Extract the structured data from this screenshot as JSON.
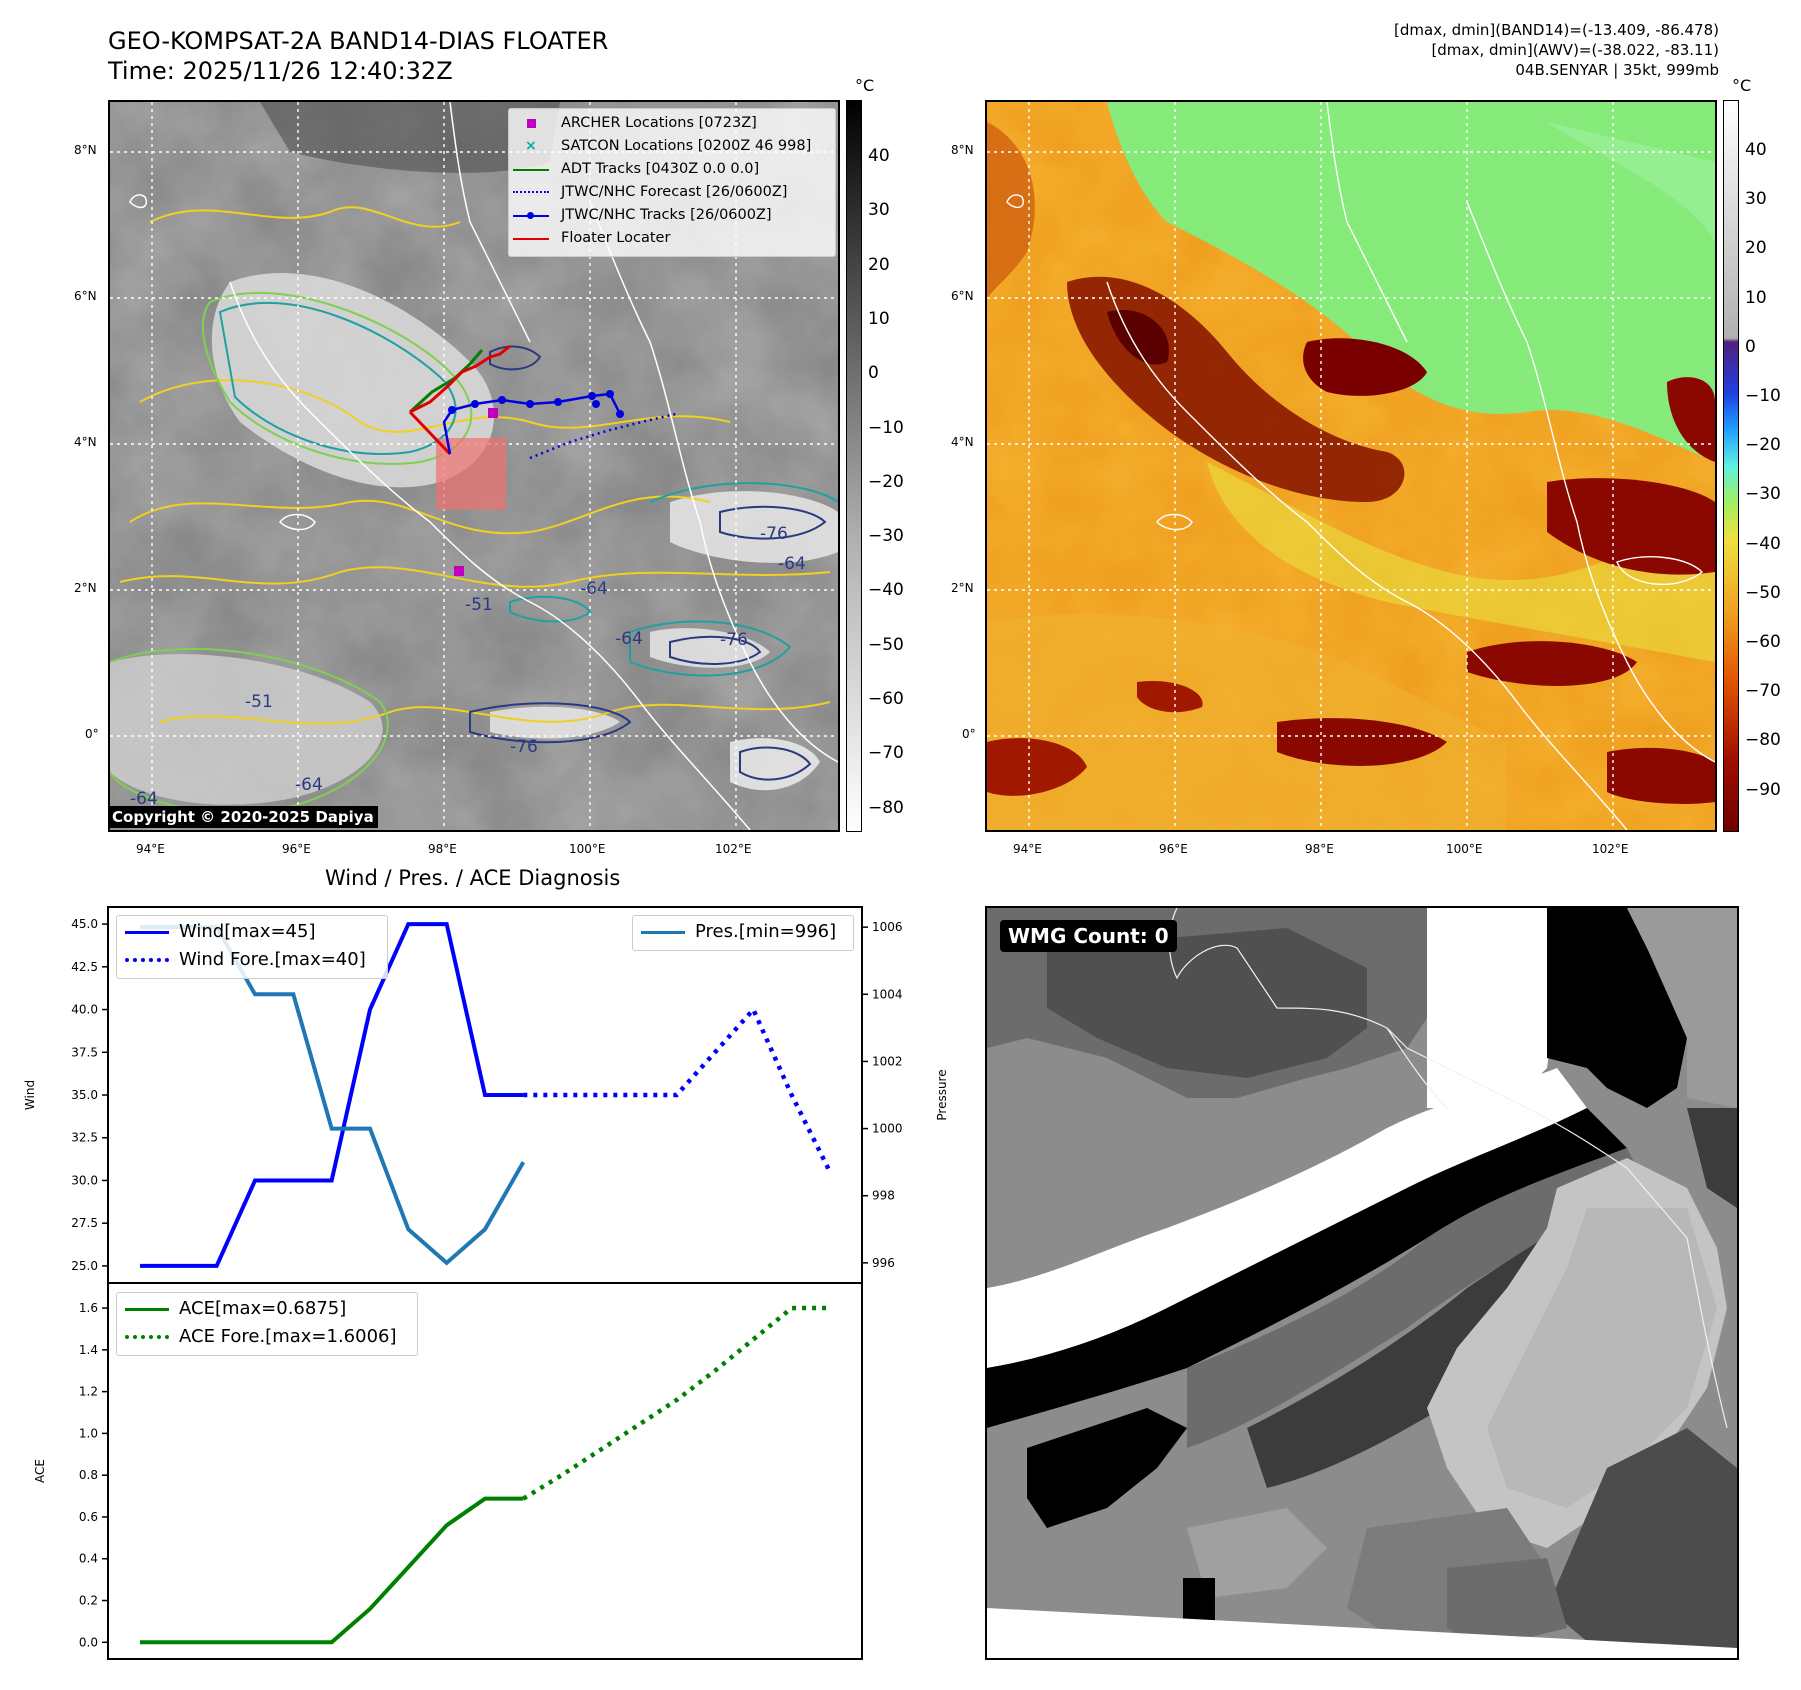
{
  "header": {
    "title_line1": "GEO-KOMPSAT-2A BAND14-DIAS FLOATER",
    "title_line2": "Time: 2025/11/26 12:40:32Z",
    "stats_line1": "[dmax, dmin](BAND14)=(-13.409, -86.478)",
    "stats_line2": "[dmax, dmin](AWV)=(-38.022, -83.11)",
    "stats_line3": "04B.SENYAR | 35kt, 999mb"
  },
  "ir_map": {
    "unit": "°C",
    "lat_labels": [
      "8°N",
      "6°N",
      "4°N",
      "2°N",
      "0°"
    ],
    "lon_labels": [
      "94°E",
      "96°E",
      "98°E",
      "100°E",
      "102°E"
    ],
    "colorbar_ticks": [
      "40",
      "30",
      "20",
      "10",
      "0",
      "−10",
      "−20",
      "−30",
      "−40",
      "−50",
      "−60",
      "−70",
      "−80"
    ],
    "copyright": "Copyright © 2020-2025 Dapiya",
    "contour_labels": [
      "-76",
      "-64",
      "-51",
      "-64",
      "-76",
      "-64",
      "-51",
      "-64",
      "-76",
      "-64"
    ],
    "legend": [
      {
        "label": "ARCHER Locations [0723Z]",
        "color": "#c000c0",
        "marker": "square"
      },
      {
        "label": "SATCON Locations [0200Z 46 998]",
        "color": "#00b0b0",
        "marker": "x"
      },
      {
        "label": "ADT Tracks [0430Z 0.0 0.0]",
        "color": "#008000",
        "marker": "line"
      },
      {
        "label": "JTWC/NHC Forecast [26/0600Z]",
        "color": "#0000e0",
        "marker": "dotted"
      },
      {
        "label": "JTWC/NHC Tracks [26/0600Z]",
        "color": "#0000e0",
        "marker": "line-dot"
      },
      {
        "label": "Floater Locater",
        "color": "#e00000",
        "marker": "line"
      }
    ]
  },
  "wv_map": {
    "unit": "°C",
    "lat_labels": [
      "8°N",
      "6°N",
      "4°N",
      "2°N",
      "0°"
    ],
    "lon_labels": [
      "94°E",
      "96°E",
      "98°E",
      "100°E",
      "102°E"
    ],
    "colorbar_ticks": [
      "40",
      "30",
      "20",
      "10",
      "0",
      "−10",
      "−20",
      "−30",
      "−40",
      "−50",
      "−60",
      "−70",
      "−80",
      "−90"
    ]
  },
  "diagnosis": {
    "title": "Wind / Pres. / ACE Diagnosis"
  },
  "wmg": {
    "label": "WMG Count: 0"
  },
  "chart_data": [
    {
      "type": "line",
      "title": "Wind / Pres. / ACE Diagnosis",
      "ylabel": "Wind",
      "y2label": "Pressure",
      "ylim": [
        24.0,
        46.0
      ],
      "y2lim": [
        995.4,
        1006.6
      ],
      "yticks": [
        "45.0",
        "42.5",
        "40.0",
        "37.5",
        "35.0",
        "32.5",
        "30.0",
        "27.5",
        "25.0"
      ],
      "y2ticks": [
        "1006",
        "1004",
        "1002",
        "1000",
        "998",
        "996"
      ],
      "x": [
        0,
        1,
        2,
        3,
        4,
        5,
        6,
        7,
        8,
        9,
        10,
        11,
        12,
        13,
        14,
        15,
        16,
        17,
        18
      ],
      "series": [
        {
          "name": "Wind[max=45]",
          "color": "#0000ff",
          "style": "solid",
          "axis": "left",
          "x": [
            0,
            1,
            2,
            3,
            4,
            5,
            6,
            7,
            8,
            9,
            10
          ],
          "values": [
            25,
            25,
            25,
            30,
            30,
            30,
            40,
            45,
            45,
            35,
            35
          ]
        },
        {
          "name": "Wind Fore.[max=40]",
          "color": "#0000ff",
          "style": "dotted",
          "axis": "left",
          "x": [
            10,
            11,
            12,
            13,
            14,
            15,
            16,
            17,
            18
          ],
          "values": [
            35,
            35,
            35,
            35,
            35,
            37.5,
            40,
            35,
            30.5
          ]
        },
        {
          "name": "Pres.[min=996]",
          "color": "#1f77b4",
          "style": "solid",
          "axis": "right",
          "x": [
            0,
            1,
            2,
            3,
            4,
            5,
            6,
            7,
            8,
            9,
            10
          ],
          "values": [
            1006,
            1006,
            1006,
            1004,
            1004,
            1000,
            1000,
            997,
            996,
            997,
            999
          ]
        }
      ],
      "legend_left": "top-left",
      "legend_right": "top-right"
    },
    {
      "type": "line",
      "ylabel": "ACE",
      "ylim": [
        -0.08,
        1.72
      ],
      "yticks": [
        "1.6",
        "1.4",
        "1.2",
        "1.0",
        "0.8",
        "0.6",
        "0.4",
        "0.2",
        "0.0"
      ],
      "series": [
        {
          "name": "ACE[max=0.6875]",
          "color": "#008000",
          "style": "solid",
          "x": [
            0,
            1,
            2,
            3,
            4,
            5,
            6,
            7,
            8,
            9,
            10
          ],
          "values": [
            0,
            0,
            0,
            0,
            0,
            0,
            0.16,
            0.36,
            0.56,
            0.6875,
            0.6875
          ]
        },
        {
          "name": "ACE Fore.[max=1.6006]",
          "color": "#008000",
          "style": "dotted",
          "x": [
            10,
            11,
            12,
            13,
            14,
            15,
            16,
            17,
            18
          ],
          "values": [
            0.6875,
            0.8,
            0.92,
            1.04,
            1.16,
            1.3,
            1.45,
            1.6,
            1.6006
          ]
        }
      ],
      "legend": "top-left"
    }
  ]
}
